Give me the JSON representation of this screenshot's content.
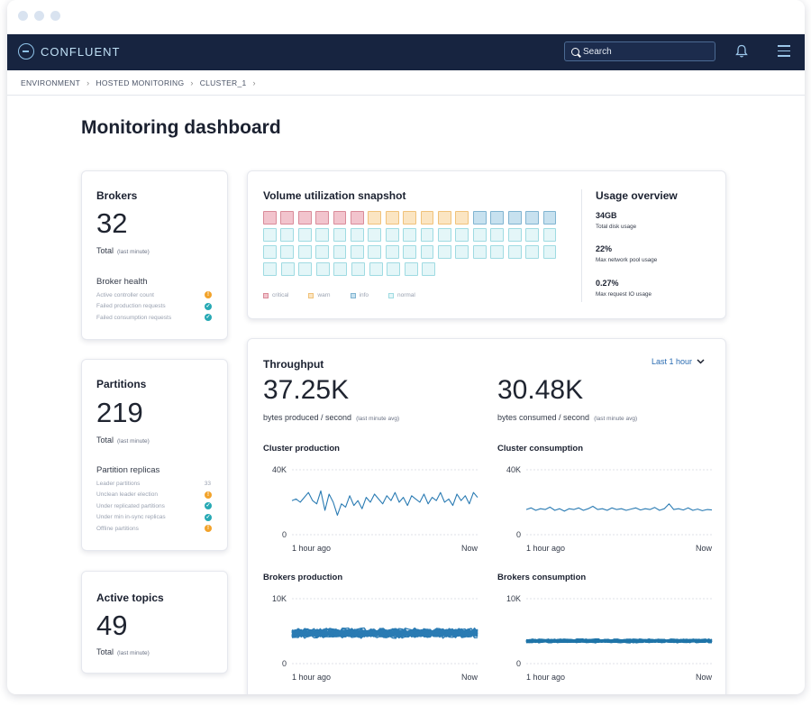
{
  "app": {
    "brand": "CONFLUENT"
  },
  "search": {
    "placeholder": "Search"
  },
  "breadcrumb": [
    "ENVIRONMENT",
    "HOSTED MONITORING",
    "CLUSTER_1"
  ],
  "page": {
    "title": "Monitoring dashboard"
  },
  "brokers": {
    "title": "Brokers",
    "value": "32",
    "total_label": "Total",
    "total_note": "(last minute)",
    "health_title": "Broker health",
    "health": [
      {
        "label": "Active controller count",
        "status": "warn",
        "icon": "!"
      },
      {
        "label": "Failed production requests",
        "status": "ok",
        "icon": "✓"
      },
      {
        "label": "Failed consumption requests",
        "status": "ok",
        "icon": "✓"
      }
    ]
  },
  "partitions": {
    "title": "Partitions",
    "value": "219",
    "total_label": "Total",
    "total_note": "(last minute)",
    "replicas_title": "Partition replicas",
    "leader": {
      "label": "Leader partitions",
      "count": "33"
    },
    "replicas": [
      {
        "label": "Unclean leader election",
        "status": "warn",
        "icon": "!"
      },
      {
        "label": "Under replicated partitions",
        "status": "ok",
        "icon": "✓"
      },
      {
        "label": "Under min in-sync replicas",
        "status": "ok",
        "icon": "✓"
      },
      {
        "label": "Offline partitions",
        "status": "warn",
        "icon": "!"
      }
    ]
  },
  "topics": {
    "title": "Active topics",
    "value": "49",
    "total_label": "Total",
    "total_note": "(last minute)"
  },
  "volume": {
    "title": "Volume utilization snapshot",
    "rows": [
      [
        "critical",
        "critical",
        "critical",
        "critical",
        "critical",
        "critical",
        "warn",
        "warn",
        "warn",
        "warn",
        "warn",
        "warn",
        "info",
        "info",
        "info",
        "info",
        "info"
      ],
      [
        "normal",
        "normal",
        "normal",
        "normal",
        "normal",
        "normal",
        "normal",
        "normal",
        "normal",
        "normal",
        "normal",
        "normal",
        "normal",
        "normal",
        "normal",
        "normal",
        "normal"
      ],
      [
        "normal",
        "normal",
        "normal",
        "normal",
        "normal",
        "normal",
        "normal",
        "normal",
        "normal",
        "normal",
        "normal",
        "normal",
        "normal",
        "normal",
        "normal",
        "normal",
        "normal"
      ],
      [
        "normal",
        "normal",
        "normal",
        "normal",
        "normal",
        "normal",
        "normal",
        "normal",
        "normal",
        "normal"
      ]
    ],
    "legend": [
      {
        "key": "critical",
        "label": "critical"
      },
      {
        "key": "warn",
        "label": "warn"
      },
      {
        "key": "info",
        "label": "info"
      },
      {
        "key": "normal",
        "label": "normal"
      }
    ],
    "colors": {
      "critical": {
        "fill": "#f2c4cd",
        "border": "#d98b99"
      },
      "warn": {
        "fill": "#fbe5c2",
        "border": "#f0c27a"
      },
      "info": {
        "fill": "#c7e1ef",
        "border": "#80b4d1"
      },
      "normal": {
        "fill": "#e4f6f8",
        "border": "#9fdbe2"
      }
    }
  },
  "usage": {
    "title": "Usage overview",
    "items": [
      {
        "value": "34GB",
        "label": "Total disk usage"
      },
      {
        "value": "22%",
        "label": "Max network pool usage"
      },
      {
        "value": "0.27%",
        "label": "Max request IO usage"
      }
    ]
  },
  "throughput": {
    "title": "Throughput",
    "range_label": "Last 1 hour",
    "produced": {
      "value": "37.25K",
      "label": "bytes produced / second",
      "note": "(last minute avg)"
    },
    "consumed": {
      "value": "30.48K",
      "label": "bytes consumed / second",
      "note": "(last minute avg)"
    }
  },
  "chart_data": [
    {
      "type": "line",
      "title": "Cluster production",
      "x_start_label": "1 hour ago",
      "x_end_label": "Now",
      "y_ticks": [
        "0",
        "40K"
      ],
      "ylim": [
        0,
        40000
      ],
      "series": [
        {
          "values": [
            21000,
            22000,
            20000,
            23000,
            26000,
            21000,
            19000,
            27000,
            15000,
            25000,
            20000,
            12000,
            19000,
            17000,
            24000,
            18000,
            21000,
            16000,
            23000,
            20000,
            25000,
            22000,
            19000,
            24000,
            21000,
            26000,
            20000,
            23000,
            18000,
            24000,
            22000,
            20000,
            25000,
            19000,
            23000,
            21000,
            26000,
            20000,
            22000,
            18000,
            25000,
            21000,
            24000,
            19000,
            26000,
            23000
          ]
        }
      ],
      "color": "#2a7bb3"
    },
    {
      "type": "line",
      "title": "Cluster consumption",
      "x_start_label": "1 hour ago",
      "x_end_label": "Now",
      "y_ticks": [
        "0",
        "40K"
      ],
      "ylim": [
        0,
        40000
      ],
      "series": [
        {
          "values": [
            15500,
            16500,
            15000,
            16000,
            15500,
            17000,
            15000,
            16000,
            14500,
            16000,
            15500,
            16500,
            15000,
            16000,
            17500,
            15500,
            16000,
            15000,
            16500,
            15500,
            16000,
            15000,
            15800,
            16500,
            15200,
            16000,
            15500,
            16800,
            15000,
            16000,
            19000,
            15500,
            16000,
            15200,
            16500,
            15000,
            15800,
            14800,
            15500,
            15200
          ]
        }
      ],
      "color": "#2a7bb3"
    },
    {
      "type": "line",
      "title": "Brokers production",
      "x_start_label": "1 hour ago",
      "x_end_label": "Now",
      "y_ticks": [
        "0",
        "10K"
      ],
      "ylim": [
        0,
        10000
      ],
      "series_count": 32,
      "band_center": 4700,
      "band_spread": 900,
      "color": "#2a7bb3"
    },
    {
      "type": "line",
      "title": "Brokers consumption",
      "x_start_label": "1 hour ago",
      "x_end_label": "Now",
      "y_ticks": [
        "0",
        "10K"
      ],
      "ylim": [
        0,
        10000
      ],
      "series_count": 32,
      "band_center": 3500,
      "band_spread": 350,
      "color": "#1f74a8"
    }
  ]
}
